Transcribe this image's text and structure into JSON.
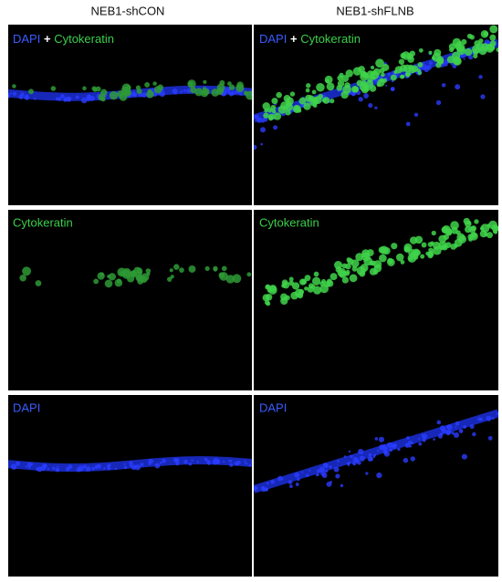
{
  "columns": [
    "NEB1-shCON",
    "NEB1-shFLNB"
  ],
  "rows": [
    {
      "parts": [
        "DAPI",
        "+",
        "Cytokeratin"
      ]
    },
    {
      "parts": [
        "Cytokeratin"
      ]
    },
    {
      "parts": [
        "DAPI"
      ]
    }
  ]
}
